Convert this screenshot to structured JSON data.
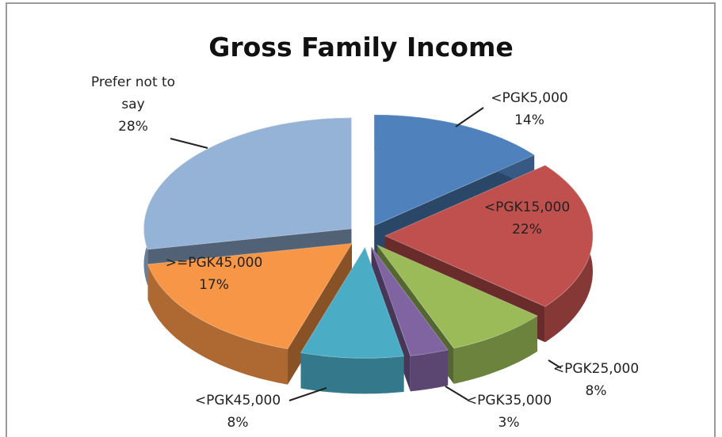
{
  "chart_data": {
    "type": "pie",
    "title": "Gross Family Income",
    "categories": [
      "<PGK5,000",
      "<PGK15,000",
      "<PGK25,000",
      "<PGK35,000",
      "<PGK45,000",
      ">=PGK45,000",
      "Prefer not to say"
    ],
    "values": [
      14,
      22,
      8,
      3,
      8,
      17,
      28
    ],
    "value_labels": [
      "14%",
      "22%",
      "8%",
      "3%",
      "8%",
      "17%",
      "28%"
    ],
    "colors": [
      "#4f81bd",
      "#c0504d",
      "#9bbb59",
      "#8064a2",
      "#4bacc6",
      "#f79646",
      "#95b3d7"
    ]
  }
}
